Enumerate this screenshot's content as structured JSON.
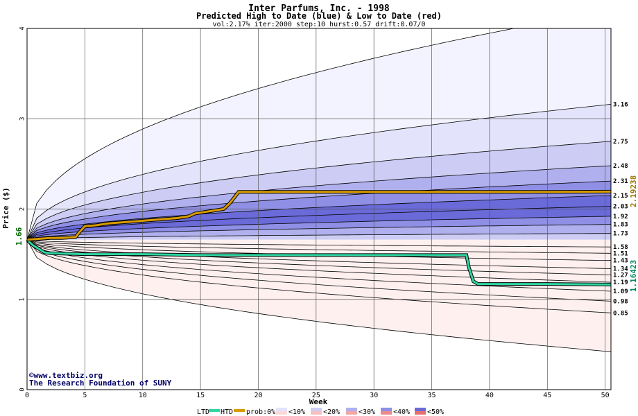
{
  "chart_data": {
    "type": "area",
    "title": "Inter Parfums, Inc. - 1998",
    "subtitle": "Predicted High to Date (blue) &  Low to Date (red)",
    "params": "vol:2.17% iter:2000 step:10 hurst:0.57 drift:0.07/0",
    "xlabel": "Week",
    "ylabel": "Price ($)",
    "xlim": [
      0,
      50.5
    ],
    "ylim": [
      0,
      4
    ],
    "x_ticks": [
      "0",
      "5",
      "10",
      "15",
      "20",
      "25",
      "30",
      "35",
      "40",
      "45",
      "50"
    ],
    "y_ticks": [
      "0",
      "1",
      "2",
      "3",
      "4"
    ],
    "grid": true,
    "start_price_label": "1.66",
    "start_price": 1.66,
    "htd_final_label": "2.19238",
    "ltd_final_label": "1.16423",
    "htd_final": 2.19238,
    "ltd_final": 1.16423,
    "right_labels": [
      "3.16",
      "2.75",
      "2.48",
      "2.31",
      "2.15",
      "2.03",
      "1.92",
      "1.83",
      "1.73",
      "1.58",
      "1.51",
      "1.43",
      "1.34",
      "1.27",
      "1.19",
      "1.09",
      "0.98",
      "0.85"
    ],
    "high_quantiles": [
      {
        "end": 4.2,
        "band": "band0"
      },
      {
        "end": 3.16,
        "band": "band1"
      },
      {
        "end": 2.75,
        "band": "band2"
      },
      {
        "end": 2.48,
        "band": "band3"
      },
      {
        "end": 2.31,
        "band": "band4"
      },
      {
        "end": 2.15,
        "band": "band5"
      },
      {
        "end": 2.03,
        "band": "band5"
      },
      {
        "end": 1.92,
        "band": "band4"
      },
      {
        "end": 1.83,
        "band": "band3"
      },
      {
        "end": 1.73,
        "band": "band2"
      }
    ],
    "low_quantiles": [
      {
        "end": 1.58,
        "band": "rband1"
      },
      {
        "end": 1.51,
        "band": "rband2"
      },
      {
        "end": 1.43,
        "band": "rband3"
      },
      {
        "end": 1.34,
        "band": "rband4"
      },
      {
        "end": 1.27,
        "band": "rband5"
      },
      {
        "end": 1.19,
        "band": "rband4"
      },
      {
        "end": 1.09,
        "band": "rband3"
      },
      {
        "end": 0.98,
        "band": "rband2"
      },
      {
        "end": 0.85,
        "band": "rband1"
      },
      {
        "end": 0.42,
        "band": "rband0"
      }
    ],
    "htd_series": {
      "x": [
        0,
        1,
        2,
        3,
        4.2,
        4.5,
        5,
        6,
        7,
        8,
        9,
        10,
        11,
        12,
        13,
        14,
        14.5,
        15,
        16,
        17,
        17.5,
        18,
        18.3,
        19,
        20,
        25,
        30,
        35,
        40,
        45,
        50.5
      ],
      "y": [
        1.66,
        1.67,
        1.68,
        1.68,
        1.69,
        1.74,
        1.81,
        1.82,
        1.84,
        1.85,
        1.86,
        1.87,
        1.88,
        1.89,
        1.9,
        1.92,
        1.95,
        1.96,
        1.98,
        2.0,
        2.06,
        2.14,
        2.19,
        2.19,
        2.19,
        2.19,
        2.19,
        2.19,
        2.19,
        2.19,
        2.19238
      ]
    },
    "ltd_series": {
      "x": [
        0,
        0.5,
        1,
        1.5,
        2,
        5,
        10,
        15,
        20,
        25,
        30,
        35,
        38,
        38.2,
        38.6,
        39,
        40,
        45,
        50.5
      ],
      "y": [
        1.66,
        1.6,
        1.56,
        1.52,
        1.51,
        1.5,
        1.5,
        1.49,
        1.49,
        1.49,
        1.49,
        1.49,
        1.49,
        1.36,
        1.2,
        1.17,
        1.17,
        1.17,
        1.16423
      ]
    },
    "legend": {
      "ltd": "LTD",
      "htd": "HTD",
      "prob": "prob:0%",
      "items": [
        "<10%",
        "<20%",
        "<30%",
        "<40%",
        "<50%"
      ]
    },
    "colors": {
      "ltd": "#2fd6a2",
      "htd": "#d89c00",
      "band0": "#f3f3ff",
      "band1": "#e3e3fb",
      "band2": "#ccccf4",
      "band3": "#b0b0ee",
      "band4": "#8f8fe6",
      "band5": "#6a6ad8",
      "rband0": "#fff0f0",
      "rband1": "#fbd9d9",
      "rband2": "#f6c0c0",
      "rband3": "#f2a6a6",
      "rband4": "#ee8a8a",
      "rband5": "#e96f6f"
    },
    "credit_site": "www.textbiz.org",
    "credit_org": "The Research Foundation of SUNY"
  }
}
